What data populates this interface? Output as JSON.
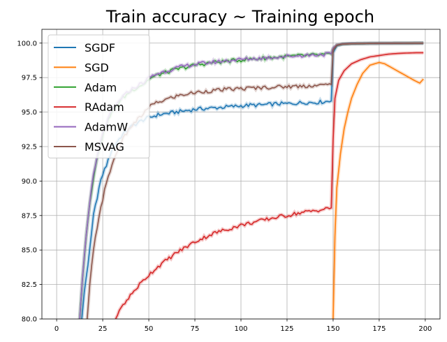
{
  "chart_data": {
    "type": "line",
    "title": "Train accuracy ~ Training epoch",
    "xlabel": "",
    "ylabel": "",
    "xlim": [
      -8,
      208
    ],
    "ylim": [
      80.0,
      101.0
    ],
    "xticks": [
      0,
      25,
      50,
      75,
      100,
      125,
      150,
      175,
      200
    ],
    "yticks": [
      80.0,
      82.5,
      85.0,
      87.5,
      90.0,
      92.5,
      95.0,
      97.5,
      100.0
    ],
    "ytick_labels": [
      "80.0",
      "82.5",
      "85.0",
      "87.5",
      "90.0",
      "92.5",
      "95.0",
      "97.5",
      "100.0"
    ],
    "grid": true,
    "legend_position": "upper-left",
    "series": [
      {
        "name": "SGDF",
        "color": "#1f77b4",
        "points": [
          [
            13,
            79
          ],
          [
            15,
            82
          ],
          [
            18,
            85
          ],
          [
            20,
            87.5
          ],
          [
            23,
            89.5
          ],
          [
            25,
            90.5
          ],
          [
            28,
            91.5
          ],
          [
            30,
            92.3
          ],
          [
            33,
            92.9
          ],
          [
            36,
            93.4
          ],
          [
            40,
            93.9
          ],
          [
            45,
            94.3
          ],
          [
            48,
            94.5
          ],
          [
            50,
            94.6
          ],
          [
            55,
            94.8
          ],
          [
            60,
            94.9
          ],
          [
            65,
            95.0
          ],
          [
            70,
            95.1
          ],
          [
            75,
            95.2
          ],
          [
            80,
            95.25
          ],
          [
            85,
            95.3
          ],
          [
            90,
            95.35
          ],
          [
            95,
            95.4
          ],
          [
            100,
            95.45
          ],
          [
            105,
            95.5
          ],
          [
            110,
            95.5
          ],
          [
            115,
            95.55
          ],
          [
            120,
            95.6
          ],
          [
            125,
            95.6
          ],
          [
            130,
            95.65
          ],
          [
            135,
            95.7
          ],
          [
            140,
            95.7
          ],
          [
            145,
            95.75
          ],
          [
            149,
            95.8
          ],
          [
            150,
            99.3
          ],
          [
            152,
            99.8
          ],
          [
            155,
            99.92
          ],
          [
            160,
            99.96
          ],
          [
            170,
            99.98
          ],
          [
            180,
            99.99
          ],
          [
            190,
            99.99
          ],
          [
            199,
            100.0
          ]
        ]
      },
      {
        "name": "SGD",
        "color": "#ff7f0e",
        "points": [
          [
            150,
            80.0
          ],
          [
            151,
            86
          ],
          [
            152,
            89.5
          ],
          [
            154,
            92
          ],
          [
            156,
            93.8
          ],
          [
            158,
            95.0
          ],
          [
            160,
            96.0
          ],
          [
            163,
            97.0
          ],
          [
            166,
            97.8
          ],
          [
            170,
            98.4
          ],
          [
            175,
            98.6
          ],
          [
            178,
            98.5
          ],
          [
            182,
            98.2
          ],
          [
            186,
            97.9
          ],
          [
            190,
            97.6
          ],
          [
            194,
            97.3
          ],
          [
            197,
            97.1
          ],
          [
            199,
            97.4
          ]
        ]
      },
      {
        "name": "Adam",
        "color": "#2ca02c",
        "points": [
          [
            12,
            79
          ],
          [
            14,
            83
          ],
          [
            16,
            86
          ],
          [
            18,
            88.5
          ],
          [
            20,
            90.3
          ],
          [
            23,
            92.3
          ],
          [
            26,
            93.8
          ],
          [
            30,
            95.0
          ],
          [
            35,
            95.9
          ],
          [
            40,
            96.5
          ],
          [
            45,
            96.9
          ],
          [
            48,
            97.1
          ],
          [
            50,
            97.4
          ],
          [
            55,
            97.7
          ],
          [
            60,
            97.9
          ],
          [
            65,
            98.1
          ],
          [
            70,
            98.25
          ],
          [
            75,
            98.4
          ],
          [
            80,
            98.5
          ],
          [
            85,
            98.6
          ],
          [
            90,
            98.65
          ],
          [
            95,
            98.72
          ],
          [
            100,
            98.78
          ],
          [
            105,
            98.84
          ],
          [
            110,
            98.88
          ],
          [
            115,
            98.94
          ],
          [
            120,
            98.98
          ],
          [
            125,
            99.02
          ],
          [
            130,
            99.06
          ],
          [
            135,
            99.1
          ],
          [
            140,
            99.13
          ],
          [
            145,
            99.16
          ],
          [
            149,
            99.2
          ],
          [
            150,
            99.6
          ],
          [
            152,
            99.85
          ],
          [
            155,
            99.93
          ],
          [
            160,
            99.96
          ],
          [
            170,
            99.98
          ],
          [
            180,
            99.99
          ],
          [
            199,
            100.0
          ]
        ]
      },
      {
        "name": "RAdam",
        "color": "#d62728",
        "points": [
          [
            32,
            80.0
          ],
          [
            35,
            80.8
          ],
          [
            40,
            81.7
          ],
          [
            45,
            82.5
          ],
          [
            50,
            83.2
          ],
          [
            55,
            83.8
          ],
          [
            60,
            84.3
          ],
          [
            65,
            84.8
          ],
          [
            70,
            85.2
          ],
          [
            75,
            85.6
          ],
          [
            80,
            85.9
          ],
          [
            85,
            86.2
          ],
          [
            90,
            86.4
          ],
          [
            95,
            86.6
          ],
          [
            100,
            86.8
          ],
          [
            105,
            86.95
          ],
          [
            110,
            87.1
          ],
          [
            115,
            87.25
          ],
          [
            120,
            87.4
          ],
          [
            125,
            87.5
          ],
          [
            130,
            87.65
          ],
          [
            135,
            87.75
          ],
          [
            140,
            87.85
          ],
          [
            145,
            87.95
          ],
          [
            149,
            88.05
          ],
          [
            150,
            93.0
          ],
          [
            151,
            96.0
          ],
          [
            153,
            97.3
          ],
          [
            156,
            98.0
          ],
          [
            160,
            98.5
          ],
          [
            165,
            98.8
          ],
          [
            170,
            99.0
          ],
          [
            175,
            99.1
          ],
          [
            180,
            99.2
          ],
          [
            185,
            99.25
          ],
          [
            190,
            99.28
          ],
          [
            195,
            99.3
          ],
          [
            199,
            99.3
          ]
        ]
      },
      {
        "name": "AdamW",
        "color": "#9467bd",
        "points": [
          [
            12,
            79
          ],
          [
            14,
            83
          ],
          [
            16,
            86
          ],
          [
            18,
            88.6
          ],
          [
            20,
            90.4
          ],
          [
            23,
            92.4
          ],
          [
            26,
            93.9
          ],
          [
            30,
            95.1
          ],
          [
            35,
            96.0
          ],
          [
            40,
            96.6
          ],
          [
            45,
            97.0
          ],
          [
            48,
            97.2
          ],
          [
            50,
            97.5
          ],
          [
            55,
            97.8
          ],
          [
            60,
            98.0
          ],
          [
            65,
            98.2
          ],
          [
            70,
            98.35
          ],
          [
            75,
            98.45
          ],
          [
            80,
            98.55
          ],
          [
            85,
            98.62
          ],
          [
            90,
            98.7
          ],
          [
            95,
            98.76
          ],
          [
            100,
            98.82
          ],
          [
            105,
            98.86
          ],
          [
            110,
            98.9
          ],
          [
            115,
            98.95
          ],
          [
            120,
            99.0
          ],
          [
            125,
            99.04
          ],
          [
            130,
            99.08
          ],
          [
            135,
            99.12
          ],
          [
            140,
            99.15
          ],
          [
            145,
            99.18
          ],
          [
            149,
            99.22
          ],
          [
            150,
            99.65
          ],
          [
            152,
            99.87
          ],
          [
            155,
            99.94
          ],
          [
            160,
            99.97
          ],
          [
            170,
            99.98
          ],
          [
            180,
            99.99
          ],
          [
            199,
            100.0
          ]
        ]
      },
      {
        "name": "MSVAG",
        "color": "#8c564b",
        "points": [
          [
            16,
            79
          ],
          [
            18,
            82.5
          ],
          [
            20,
            85
          ],
          [
            23,
            87.5
          ],
          [
            26,
            89.3
          ],
          [
            30,
            91.2
          ],
          [
            35,
            92.8
          ],
          [
            40,
            93.9
          ],
          [
            45,
            94.6
          ],
          [
            48,
            95.0
          ],
          [
            50,
            95.4
          ],
          [
            55,
            95.7
          ],
          [
            60,
            95.95
          ],
          [
            65,
            96.15
          ],
          [
            70,
            96.3
          ],
          [
            75,
            96.4
          ],
          [
            80,
            96.5
          ],
          [
            85,
            96.55
          ],
          [
            90,
            96.62
          ],
          [
            95,
            96.66
          ],
          [
            100,
            96.7
          ],
          [
            105,
            96.73
          ],
          [
            110,
            96.77
          ],
          [
            115,
            96.8
          ],
          [
            120,
            96.82
          ],
          [
            125,
            96.85
          ],
          [
            130,
            96.87
          ],
          [
            135,
            96.9
          ],
          [
            140,
            96.92
          ],
          [
            145,
            96.95
          ],
          [
            149,
            97.0
          ],
          [
            150,
            99.5
          ],
          [
            152,
            99.85
          ],
          [
            155,
            99.93
          ],
          [
            160,
            99.96
          ],
          [
            170,
            99.98
          ],
          [
            180,
            99.99
          ],
          [
            199,
            100.0
          ]
        ]
      }
    ]
  }
}
